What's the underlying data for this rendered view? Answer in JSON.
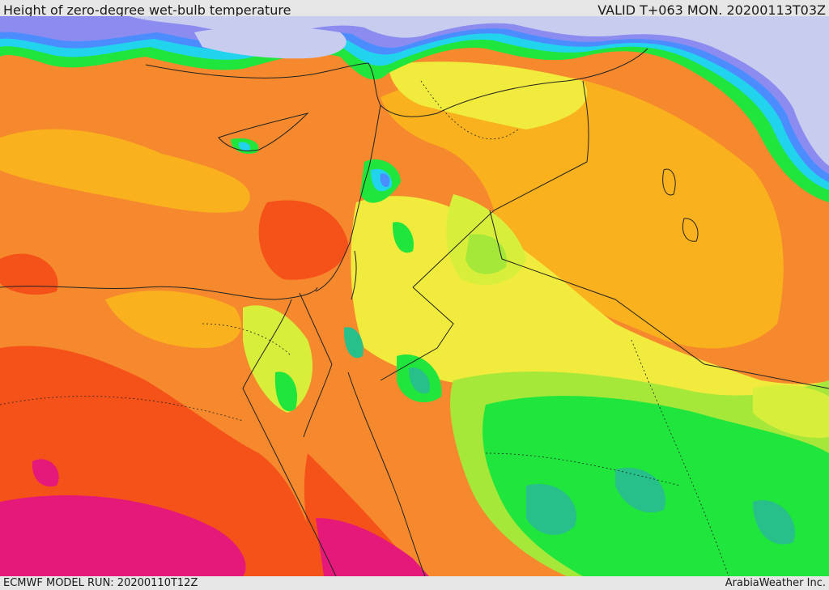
{
  "header": {
    "title": "Height of zero-degree wet-bulb temperature",
    "valid_time": "VALID T+063 MON. 20200113T03Z"
  },
  "footer": {
    "model_run": "ECMWF MODEL RUN: 20200110T12Z",
    "credit": "ArabiaWeather Inc."
  },
  "map": {
    "region": "Eastern Mediterranean and Middle East",
    "field": "zero-degree wet-bulb height",
    "colors": {
      "sea_lavender": "#c8cdf0",
      "purple_blue": "#8c8cf0",
      "blue": "#4b8cff",
      "cyan": "#22d3ee",
      "teal": "#27c08a",
      "green": "#1fe53c",
      "light_green": "#a6e83a",
      "yellow_green": "#d7ef3a",
      "yellow": "#f0eb3c",
      "light_orange": "#f9b21e",
      "orange": "#f6892d",
      "red_orange": "#f5521a",
      "magenta": "#e5197a"
    }
  }
}
